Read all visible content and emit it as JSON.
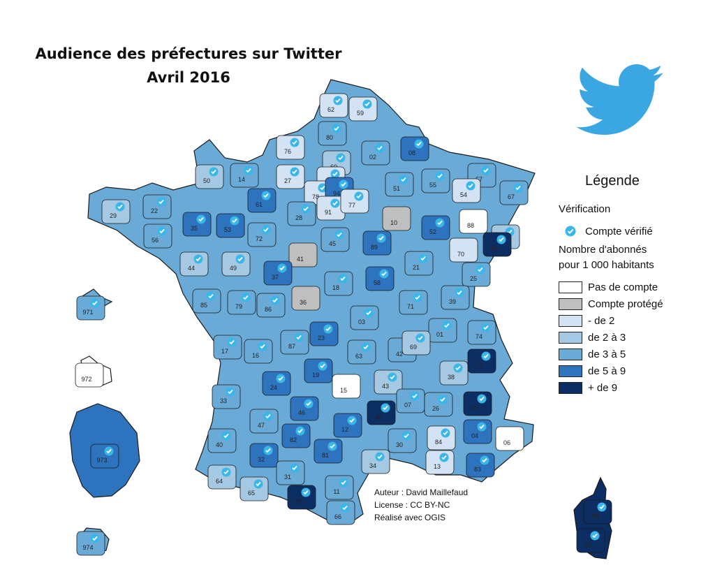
{
  "title": {
    "line1": "Audience des préfectures sur Twitter",
    "line2": "Avril 2016"
  },
  "legend": {
    "title": "Légende",
    "verification_heading": "Vérification",
    "verified_label": "Compte vérifié",
    "subscribers_heading_line1": "Nombre d'abonnés",
    "subscribers_heading_line2": "pour 1 000 habitants",
    "classes": [
      {
        "label": "Pas de compte",
        "color": "#ffffff"
      },
      {
        "label": "Compte protégé",
        "color": "#bfbfbf"
      },
      {
        "label": "- de 2",
        "color": "#d4e3f3"
      },
      {
        "label": "de 2 à 3",
        "color": "#a6c9e3"
      },
      {
        "label": "de 3 à 5",
        "color": "#6aaad6"
      },
      {
        "label": "de 5 à 9",
        "color": "#2e73bd"
      },
      {
        "label": "+ de 9",
        "color": "#0d2e63"
      }
    ]
  },
  "credits": {
    "author": "Auteur : David Maillefaud",
    "license": "License : CC BY-NC",
    "made_with": "Réalisé avec OGIS"
  },
  "colors": {
    "verified_badge": "#39b6ea",
    "twitter_bird": "#3aa6e2",
    "border": "#1a1a1a"
  },
  "departments": [
    {
      "code": "62",
      "class": "- de 2",
      "verified": true
    },
    {
      "code": "59",
      "class": "- de 2",
      "verified": true
    },
    {
      "code": "80",
      "class": "de 3 à 5",
      "verified": true
    },
    {
      "code": "76",
      "class": "- de 2",
      "verified": true
    },
    {
      "code": "02",
      "class": "de 3 à 5",
      "verified": true
    },
    {
      "code": "08",
      "class": "de 5 à 9",
      "verified": true
    },
    {
      "code": "60",
      "class": "de 2 à 3",
      "verified": true
    },
    {
      "code": "27",
      "class": "- de 2",
      "verified": true
    },
    {
      "code": "50",
      "class": "de 2 à 3",
      "verified": true
    },
    {
      "code": "14",
      "class": "de 3 à 5",
      "verified": true
    },
    {
      "code": "95",
      "class": "- de 2",
      "verified": true
    },
    {
      "code": "78",
      "class": "- de 2",
      "verified": true
    },
    {
      "code": "94",
      "class": "de 5 à 9",
      "verified": true
    },
    {
      "code": "91",
      "class": "- de 2",
      "verified": true
    },
    {
      "code": "77",
      "class": "- de 2",
      "verified": true
    },
    {
      "code": "51",
      "class": "de 3 à 5",
      "verified": true
    },
    {
      "code": "55",
      "class": "de 3 à 5",
      "verified": true
    },
    {
      "code": "57",
      "class": "de 3 à 5",
      "verified": true
    },
    {
      "code": "54",
      "class": "- de 2",
      "verified": true
    },
    {
      "code": "67",
      "class": "de 3 à 5",
      "verified": true
    },
    {
      "code": "29",
      "class": "de 2 à 3",
      "verified": true
    },
    {
      "code": "22",
      "class": "de 3 à 5",
      "verified": true
    },
    {
      "code": "61",
      "class": "de 5 à 9",
      "verified": true
    },
    {
      "code": "28",
      "class": "de 3 à 5",
      "verified": true
    },
    {
      "code": "10",
      "class": "Compte protégé",
      "verified": false
    },
    {
      "code": "52",
      "class": "de 5 à 9",
      "verified": true
    },
    {
      "code": "88",
      "class": "Pas de compte",
      "verified": false
    },
    {
      "code": "68",
      "class": "de 2 à 3",
      "verified": true
    },
    {
      "code": "56",
      "class": "de 3 à 5",
      "verified": true
    },
    {
      "code": "35",
      "class": "de 5 à 9",
      "verified": true
    },
    {
      "code": "53",
      "class": "de 5 à 9",
      "verified": true
    },
    {
      "code": "72",
      "class": "de 3 à 5",
      "verified": true
    },
    {
      "code": "45",
      "class": "de 3 à 5",
      "verified": true
    },
    {
      "code": "89",
      "class": "de 5 à 9",
      "verified": true
    },
    {
      "code": "70",
      "class": "- de 2",
      "verified": false
    },
    {
      "code": "90",
      "class": "+ de 9",
      "verified": true
    },
    {
      "code": "44",
      "class": "de 2 à 3",
      "verified": true
    },
    {
      "code": "49",
      "class": "de 2 à 3",
      "verified": true
    },
    {
      "code": "41",
      "class": "Compte protégé",
      "verified": false
    },
    {
      "code": "37",
      "class": "de 5 à 9",
      "verified": true
    },
    {
      "code": "18",
      "class": "de 3 à 5",
      "verified": true
    },
    {
      "code": "58",
      "class": "de 5 à 9",
      "verified": true
    },
    {
      "code": "21",
      "class": "de 3 à 5",
      "verified": true
    },
    {
      "code": "25",
      "class": "de 3 à 5",
      "verified": true
    },
    {
      "code": "85",
      "class": "de 3 à 5",
      "verified": true
    },
    {
      "code": "79",
      "class": "de 3 à 5",
      "verified": true
    },
    {
      "code": "86",
      "class": "de 3 à 5",
      "verified": true
    },
    {
      "code": "36",
      "class": "Compte protégé",
      "verified": false
    },
    {
      "code": "71",
      "class": "de 3 à 5",
      "verified": true
    },
    {
      "code": "39",
      "class": "de 3 à 5",
      "verified": true
    },
    {
      "code": "03",
      "class": "de 3 à 5",
      "verified": true
    },
    {
      "code": "01",
      "class": "de 3 à 5",
      "verified": true
    },
    {
      "code": "74",
      "class": "de 3 à 5",
      "verified": true
    },
    {
      "code": "17",
      "class": "de 3 à 5",
      "verified": true
    },
    {
      "code": "16",
      "class": "de 3 à 5",
      "verified": true
    },
    {
      "code": "87",
      "class": "de 3 à 5",
      "verified": true
    },
    {
      "code": "23",
      "class": "de 5 à 9",
      "verified": true
    },
    {
      "code": "63",
      "class": "de 3 à 5",
      "verified": true
    },
    {
      "code": "42",
      "class": "de 3 à 5",
      "verified": true
    },
    {
      "code": "69",
      "class": "de 2 à 3",
      "verified": true
    },
    {
      "code": "73",
      "class": "+ de 9",
      "verified": true
    },
    {
      "code": "38",
      "class": "de 2 à 3",
      "verified": true
    },
    {
      "code": "24",
      "class": "de 5 à 9",
      "verified": true
    },
    {
      "code": "19",
      "class": "de 5 à 9",
      "verified": true
    },
    {
      "code": "15",
      "class": "Pas de compte",
      "verified": false
    },
    {
      "code": "43",
      "class": "de 2 à 3",
      "verified": true
    },
    {
      "code": "33",
      "class": "de 3 à 5",
      "verified": true
    },
    {
      "code": "47",
      "class": "de 3 à 5",
      "verified": true
    },
    {
      "code": "46",
      "class": "de 5 à 9",
      "verified": true
    },
    {
      "code": "48",
      "class": "+ de 9",
      "verified": true
    },
    {
      "code": "07",
      "class": "de 3 à 5",
      "verified": true
    },
    {
      "code": "26",
      "class": "de 3 à 5",
      "verified": true
    },
    {
      "code": "05",
      "class": "+ de 9",
      "verified": true
    },
    {
      "code": "12",
      "class": "de 5 à 9",
      "verified": true
    },
    {
      "code": "82",
      "class": "de 5 à 9",
      "verified": true
    },
    {
      "code": "40",
      "class": "de 3 à 5",
      "verified": true
    },
    {
      "code": "30",
      "class": "de 3 à 5",
      "verified": true
    },
    {
      "code": "84",
      "class": "- de 2",
      "verified": true
    },
    {
      "code": "04",
      "class": "de 5 à 9",
      "verified": true
    },
    {
      "code": "06",
      "class": "Pas de compte",
      "verified": false
    },
    {
      "code": "32",
      "class": "de 5 à 9",
      "verified": true
    },
    {
      "code": "81",
      "class": "de 5 à 9",
      "verified": true
    },
    {
      "code": "34",
      "class": "de 2 à 3",
      "verified": true
    },
    {
      "code": "13",
      "class": "- de 2",
      "verified": true
    },
    {
      "code": "83",
      "class": "de 5 à 9",
      "verified": true
    },
    {
      "code": "64",
      "class": "de 2 à 3",
      "verified": true
    },
    {
      "code": "65",
      "class": "de 2 à 3",
      "verified": true
    },
    {
      "code": "31",
      "class": "de 3 à 5",
      "verified": true
    },
    {
      "code": "11",
      "class": "de 3 à 5",
      "verified": true
    },
    {
      "code": "09",
      "class": "+ de 9",
      "verified": true
    },
    {
      "code": "66",
      "class": "de 3 à 5",
      "verified": true
    },
    {
      "code": "2B",
      "class": "+ de 9",
      "verified": true
    },
    {
      "code": "2A",
      "class": "+ de 9",
      "verified": true
    },
    {
      "code": "971",
      "class": "de 3 à 5",
      "verified": true
    },
    {
      "code": "972",
      "class": "Pas de compte",
      "verified": false
    },
    {
      "code": "973",
      "class": "de 5 à 9",
      "verified": true
    },
    {
      "code": "974",
      "class": "de 3 à 5",
      "verified": true
    }
  ]
}
